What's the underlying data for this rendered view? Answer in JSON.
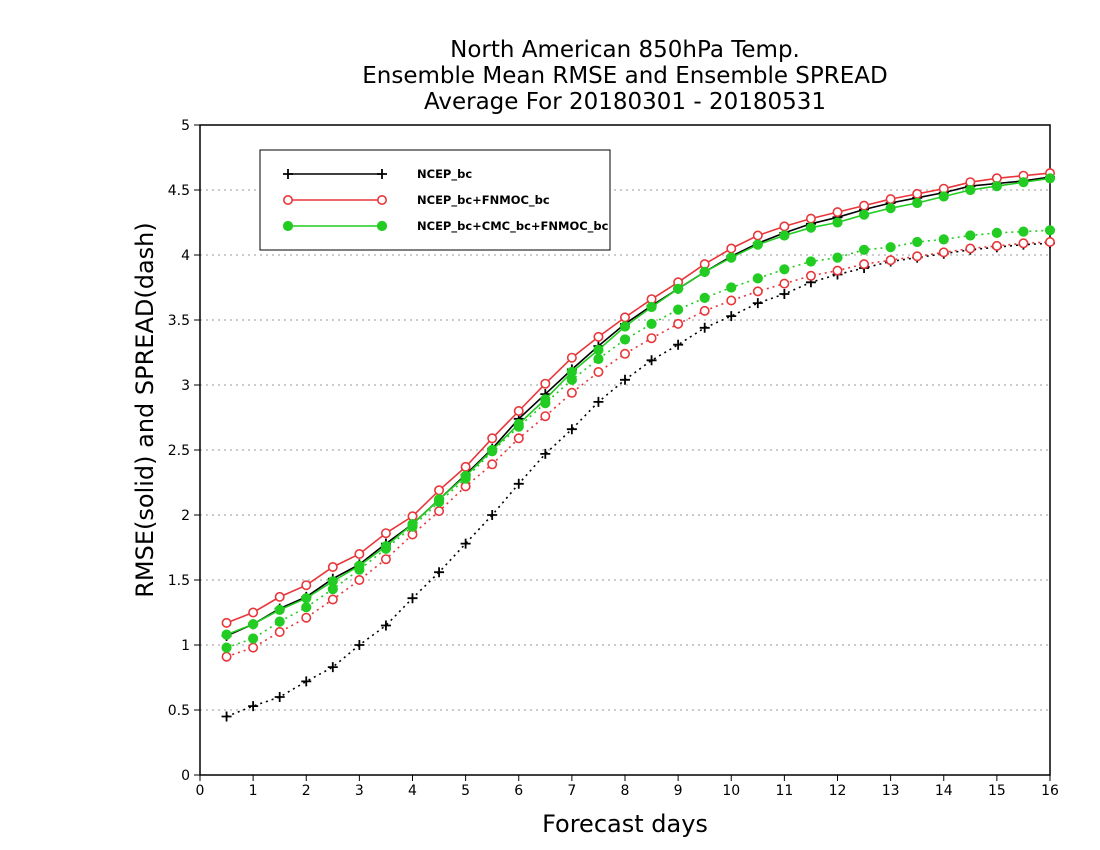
{
  "chart_data": {
    "type": "line",
    "title": [
      "North American 850hPa Temp.",
      "Ensemble Mean RMSE and Ensemble SPREAD",
      "Average For 20180301 - 20180531"
    ],
    "xlabel": "Forecast days",
    "ylabel": "RMSE(solid) and SPREAD(dash)",
    "xlim": [
      0,
      16
    ],
    "ylim": [
      0,
      5
    ],
    "x_ticks": [
      0,
      1,
      2,
      3,
      4,
      5,
      6,
      7,
      8,
      9,
      10,
      11,
      12,
      13,
      14,
      15,
      16
    ],
    "y_ticks": [
      0,
      0.5,
      1,
      1.5,
      2,
      2.5,
      3,
      3.5,
      4,
      4.5,
      5
    ],
    "grid": "horizontal dotted",
    "legend_position": "top-left",
    "x": [
      0.5,
      1,
      1.5,
      2,
      2.5,
      3,
      3.5,
      4,
      4.5,
      5,
      5.5,
      6,
      6.5,
      7,
      7.5,
      8,
      8.5,
      9,
      9.5,
      10,
      10.5,
      11,
      11.5,
      12,
      12.5,
      13,
      13.5,
      14,
      14.5,
      15,
      15.5,
      16
    ],
    "series": [
      {
        "name": "NCEP_bc",
        "color": "#000000",
        "marker": "plus",
        "rmse": [
          1.07,
          1.16,
          1.28,
          1.37,
          1.51,
          1.62,
          1.78,
          1.93,
          2.12,
          2.31,
          2.51,
          2.74,
          2.93,
          3.12,
          3.3,
          3.47,
          3.61,
          3.74,
          3.87,
          3.99,
          4.09,
          4.17,
          4.24,
          4.29,
          4.35,
          4.4,
          4.44,
          4.48,
          4.53,
          4.55,
          4.57,
          4.6
        ],
        "spread": [
          0.45,
          0.53,
          0.6,
          0.72,
          0.83,
          1.0,
          1.15,
          1.36,
          1.56,
          1.78,
          2.0,
          2.24,
          2.47,
          2.66,
          2.87,
          3.04,
          3.19,
          3.31,
          3.44,
          3.53,
          3.63,
          3.7,
          3.79,
          3.85,
          3.9,
          3.95,
          3.98,
          4.01,
          4.04,
          4.06,
          4.08,
          4.09
        ]
      },
      {
        "name": "NCEP_bc+FNMOC_bc",
        "color": "#e8363a",
        "marker": "open-circle",
        "rmse": [
          1.17,
          1.25,
          1.37,
          1.46,
          1.6,
          1.7,
          1.86,
          1.99,
          2.19,
          2.37,
          2.59,
          2.8,
          3.01,
          3.21,
          3.37,
          3.52,
          3.66,
          3.79,
          3.93,
          4.05,
          4.15,
          4.22,
          4.28,
          4.33,
          4.38,
          4.43,
          4.47,
          4.51,
          4.56,
          4.59,
          4.61,
          4.63
        ],
        "spread": [
          0.91,
          0.98,
          1.1,
          1.21,
          1.35,
          1.5,
          1.66,
          1.85,
          2.03,
          2.22,
          2.39,
          2.59,
          2.76,
          2.94,
          3.1,
          3.24,
          3.36,
          3.47,
          3.57,
          3.65,
          3.72,
          3.78,
          3.84,
          3.88,
          3.93,
          3.96,
          3.99,
          4.02,
          4.05,
          4.07,
          4.09,
          4.1
        ]
      },
      {
        "name": "NCEP_bc+CMC_bc+FNMOC_bc",
        "color": "#22cc22",
        "marker": "filled-circle",
        "rmse": [
          1.08,
          1.16,
          1.27,
          1.36,
          1.49,
          1.61,
          1.76,
          1.93,
          2.12,
          2.3,
          2.5,
          2.7,
          2.89,
          3.1,
          3.27,
          3.45,
          3.6,
          3.74,
          3.87,
          3.98,
          4.08,
          4.15,
          4.21,
          4.25,
          4.31,
          4.36,
          4.4,
          4.45,
          4.5,
          4.53,
          4.56,
          4.59
        ],
        "spread": [
          0.98,
          1.05,
          1.18,
          1.29,
          1.43,
          1.58,
          1.74,
          1.91,
          2.1,
          2.28,
          2.49,
          2.68,
          2.86,
          3.04,
          3.2,
          3.35,
          3.47,
          3.58,
          3.67,
          3.75,
          3.82,
          3.89,
          3.95,
          3.98,
          4.04,
          4.06,
          4.1,
          4.12,
          4.15,
          4.17,
          4.18,
          4.19
        ]
      }
    ]
  }
}
